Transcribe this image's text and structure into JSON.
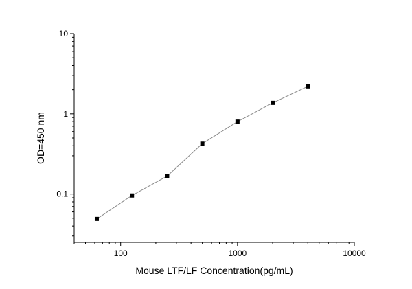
{
  "chart_data": {
    "type": "scatter",
    "title": "",
    "xlabel": "Mouse LTF/LF  Concentration(pg/mL)",
    "ylabel": "OD=450 nm",
    "xscale": "log",
    "yscale": "log",
    "xlim": [
      40,
      10000
    ],
    "ylim": [
      0.025,
      10
    ],
    "x_ticks": [
      {
        "value": 100,
        "label": "100"
      },
      {
        "value": 1000,
        "label": "1000"
      },
      {
        "value": 10000,
        "label": "10000"
      }
    ],
    "y_ticks": [
      {
        "value": 0.1,
        "label": "0.1"
      },
      {
        "value": 1,
        "label": "1"
      },
      {
        "value": 10,
        "label": "10"
      }
    ],
    "series": [
      {
        "x": [
          62.5,
          125,
          250,
          500,
          1000,
          2000,
          4000
        ],
        "y": [
          0.049,
          0.096,
          0.167,
          0.425,
          0.8,
          1.37,
          2.2
        ]
      }
    ],
    "grid": false,
    "legend": "none",
    "colors": {
      "line": "#8a8a8a",
      "marker": "#000000",
      "axis": "#000000"
    }
  }
}
